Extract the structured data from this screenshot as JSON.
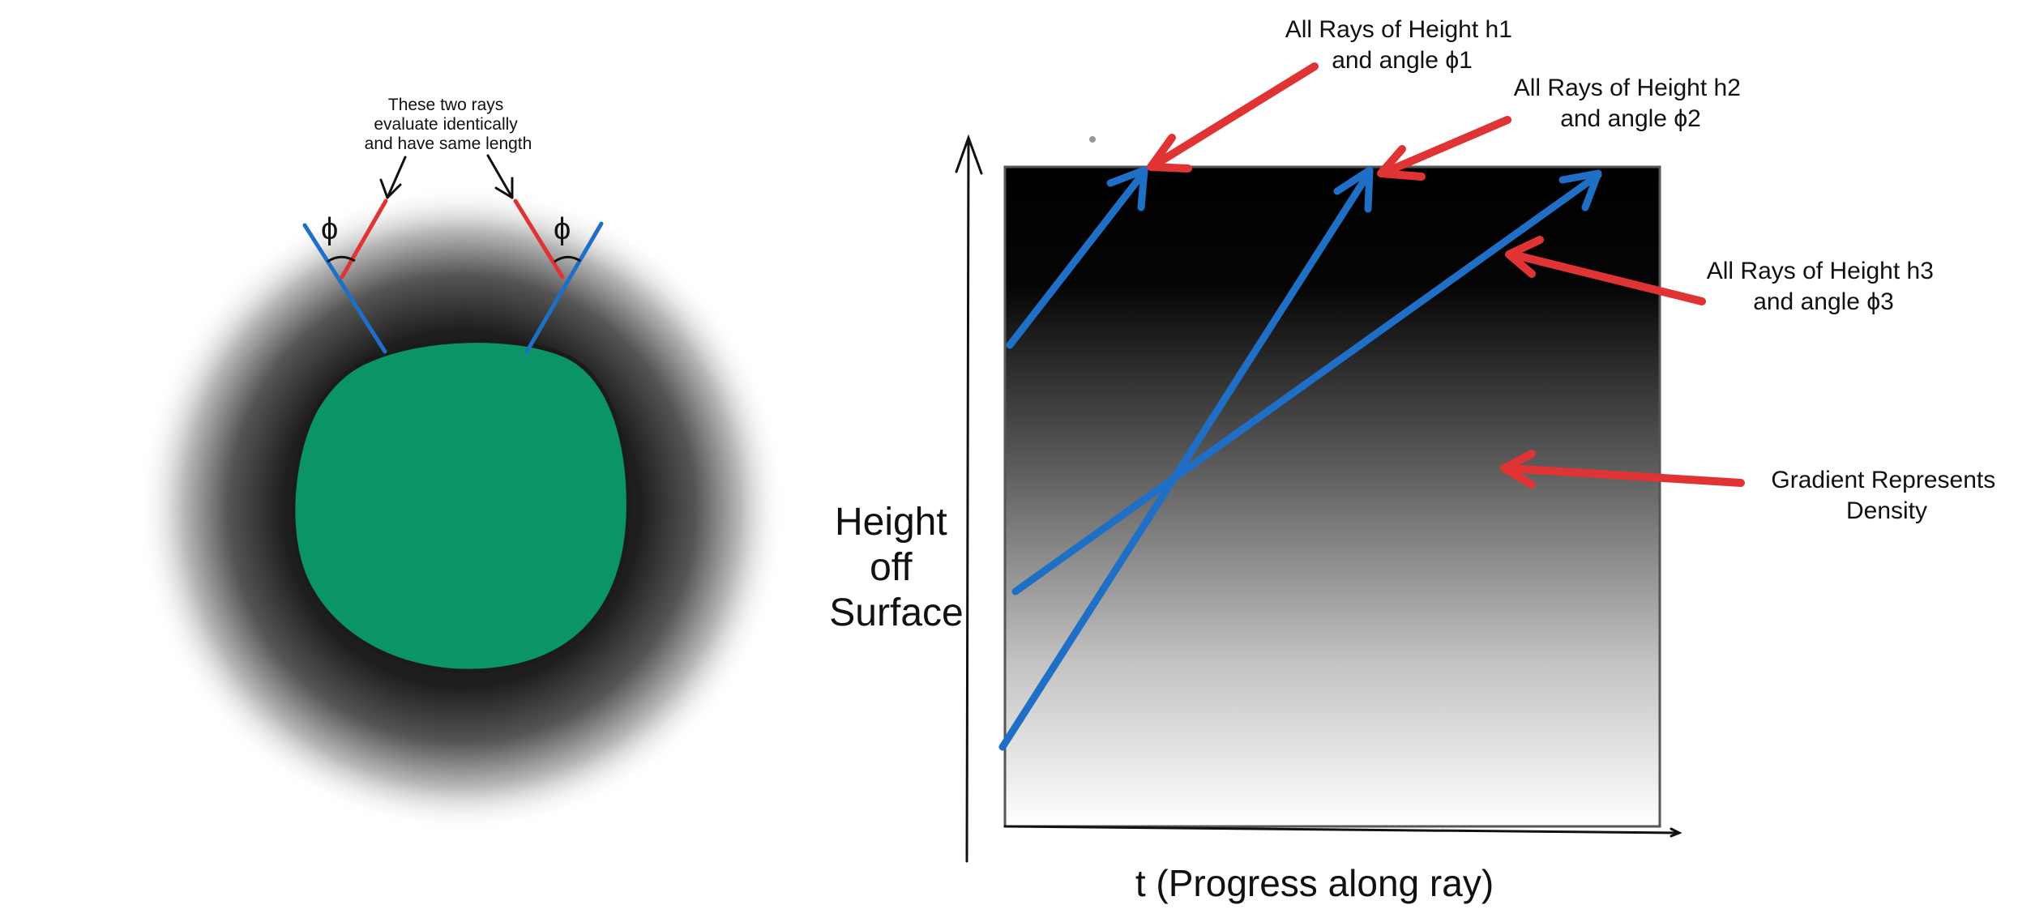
{
  "left_diagram": {
    "callout_lines": [
      "These two rays",
      "evaluate identically",
      "and have same length"
    ],
    "angle_symbol": "ϕ"
  },
  "right_diagram": {
    "y_axis_label_lines": [
      "Height",
      "off",
      "Surface"
    ],
    "x_axis_label": "t (Progress along ray)",
    "annotations": {
      "rays_h1": [
        "All Rays of Height h1",
        "and angle ϕ1"
      ],
      "rays_h2": [
        "All Rays of Height h2",
        "and angle ϕ2"
      ],
      "rays_h3": [
        "All Rays of Height h3",
        "and angle ϕ3"
      ],
      "gradient": [
        "Gradient Represents",
        "Density"
      ]
    }
  },
  "colors": {
    "planet": "#0b9467",
    "ray_blue": "#1f6fc6",
    "ray_red": "#e03434",
    "atmosphere_dark": "#1a1a1a"
  }
}
